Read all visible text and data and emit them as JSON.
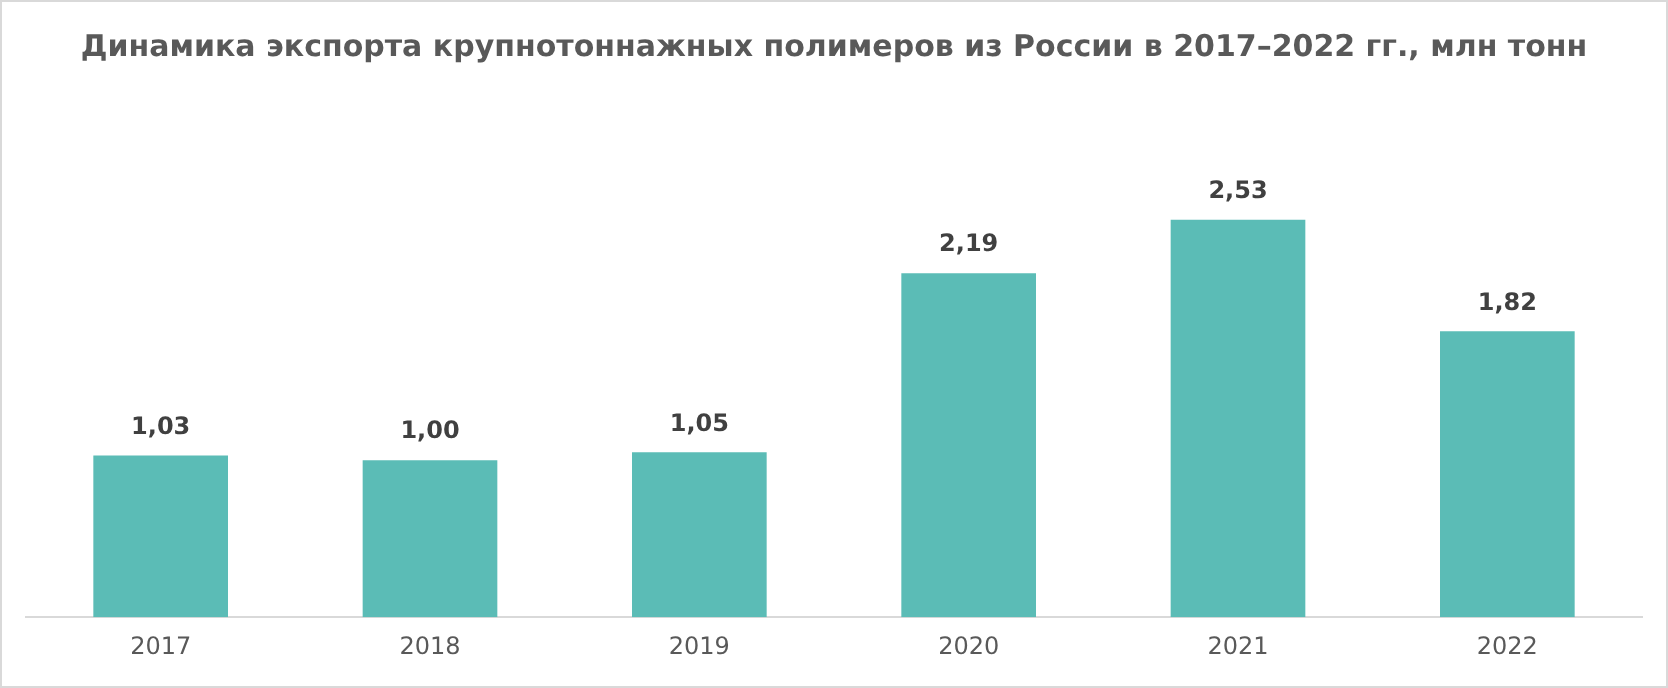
{
  "chart_data": {
    "type": "bar",
    "title": "Динамика экспорта крупнотоннажных полимеров из России в 2017–2022 гг., млн тонн",
    "categories": [
      "2017",
      "2018",
      "2019",
      "2020",
      "2021",
      "2022"
    ],
    "values": [
      1.03,
      1.0,
      1.05,
      2.19,
      2.53,
      1.82
    ],
    "value_labels": [
      "1,03",
      "1,00",
      "1,05",
      "2,19",
      "2,53",
      "1,82"
    ],
    "color": "#5bbcb6",
    "grid": false,
    "legend": false
  }
}
